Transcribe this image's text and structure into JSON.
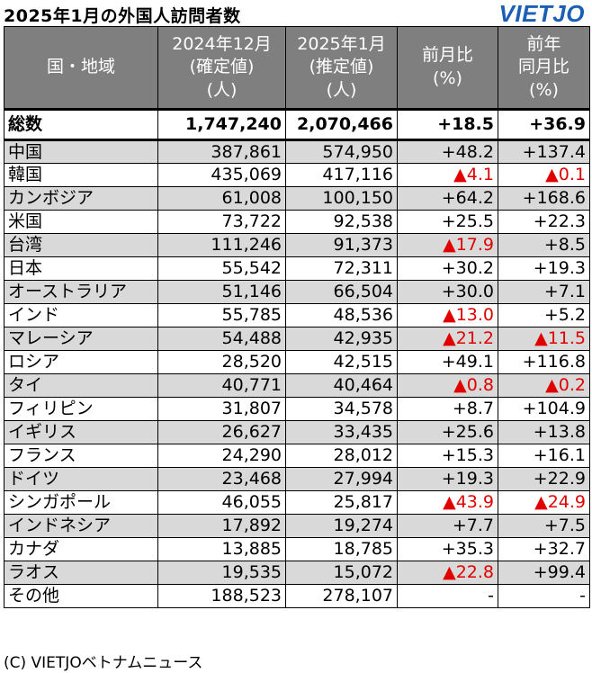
{
  "title": "2025年1月の外国人訪問者数",
  "logo": "VIETJO",
  "headers": {
    "region": "国・地域",
    "col1": [
      "2024年12月",
      "(確定値)",
      "(人)"
    ],
    "col2": [
      "2025年1月",
      "(推定値)",
      "(人)"
    ],
    "col3": [
      "前月比",
      "(%)"
    ],
    "col4": [
      "前年",
      "同月比",
      "(%)"
    ]
  },
  "total": {
    "name": "総数",
    "dec": "1,747,240",
    "jan": "2,070,466",
    "mom": "+18.5",
    "yoy": "+36.9"
  },
  "rows": [
    {
      "name": "中国",
      "dec": "387,861",
      "jan": "574,950",
      "mom": "+48.2",
      "yoy": "+137.4"
    },
    {
      "name": "韓国",
      "dec": "435,069",
      "jan": "417,116",
      "mom": "▲4.1",
      "yoy": "▲0.1"
    },
    {
      "name": "カンボジア",
      "dec": "61,008",
      "jan": "100,150",
      "mom": "+64.2",
      "yoy": "+168.6"
    },
    {
      "name": "米国",
      "dec": "73,722",
      "jan": "92,538",
      "mom": "+25.5",
      "yoy": "+22.3"
    },
    {
      "name": "台湾",
      "dec": "111,246",
      "jan": "91,373",
      "mom": "▲17.9",
      "yoy": "+8.5"
    },
    {
      "name": "日本",
      "dec": "55,542",
      "jan": "72,311",
      "mom": "+30.2",
      "yoy": "+19.3"
    },
    {
      "name": "オーストラリア",
      "dec": "51,146",
      "jan": "66,504",
      "mom": "+30.0",
      "yoy": "+7.1"
    },
    {
      "name": "インド",
      "dec": "55,785",
      "jan": "48,536",
      "mom": "▲13.0",
      "yoy": "+5.2"
    },
    {
      "name": "マレーシア",
      "dec": "54,488",
      "jan": "42,935",
      "mom": "▲21.2",
      "yoy": "▲11.5"
    },
    {
      "name": "ロシア",
      "dec": "28,520",
      "jan": "42,515",
      "mom": "+49.1",
      "yoy": "+116.8"
    },
    {
      "name": "タイ",
      "dec": "40,771",
      "jan": "40,464",
      "mom": "▲0.8",
      "yoy": "▲0.2"
    },
    {
      "name": "フィリピン",
      "dec": "31,807",
      "jan": "34,578",
      "mom": "+8.7",
      "yoy": "+104.9"
    },
    {
      "name": "イギリス",
      "dec": "26,627",
      "jan": "33,435",
      "mom": "+25.6",
      "yoy": "+13.8"
    },
    {
      "name": "フランス",
      "dec": "24,290",
      "jan": "28,012",
      "mom": "+15.3",
      "yoy": "+16.1"
    },
    {
      "name": "ドイツ",
      "dec": "23,468",
      "jan": "27,994",
      "mom": "+19.3",
      "yoy": "+22.9"
    },
    {
      "name": "シンガポール",
      "dec": "46,055",
      "jan": "25,817",
      "mom": "▲43.9",
      "yoy": "▲24.9"
    },
    {
      "name": "インドネシア",
      "dec": "17,892",
      "jan": "19,274",
      "mom": "+7.7",
      "yoy": "+7.5"
    },
    {
      "name": "カナダ",
      "dec": "13,885",
      "jan": "18,785",
      "mom": "+35.3",
      "yoy": "+32.7"
    },
    {
      "name": "ラオス",
      "dec": "19,535",
      "jan": "15,072",
      "mom": "▲22.8",
      "yoy": "+99.4"
    },
    {
      "name": "その他",
      "dec": "188,523",
      "jan": "278,107",
      "mom": "-",
      "yoy": "-"
    }
  ],
  "footer": "(C) VIETJOベトナムニュース",
  "colors": {
    "header_bg": "#7f7f7f",
    "stripe": "#d9d9d9",
    "negative": "#e00000",
    "logo": "#1a5fb4"
  }
}
